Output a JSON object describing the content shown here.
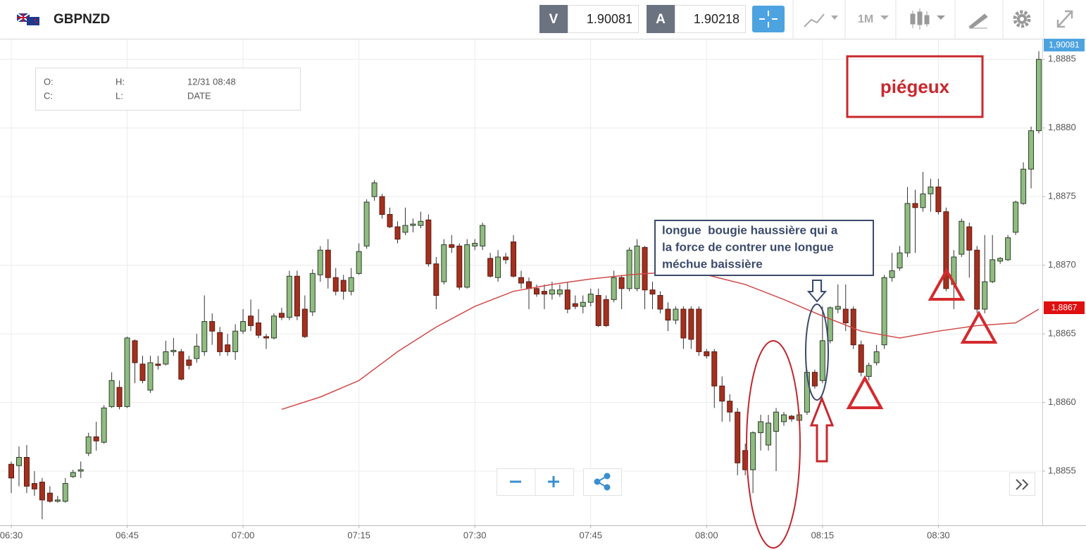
{
  "header": {
    "symbol": "GBPNZD",
    "sell_label": "V",
    "sell_price": "1.90081",
    "buy_label": "A",
    "buy_price": "1.90218",
    "timeframe": "1M"
  },
  "info_box": {
    "open_label": "O:",
    "high_label": "H:",
    "date_value": "12/31 08:48",
    "close_label": "C:",
    "low_label": "L:",
    "date_label": "DATE"
  },
  "chart_data": {
    "type": "candlestick",
    "x": [
      "06:30",
      "06:31",
      "06:32",
      "06:33",
      "06:34",
      "06:35",
      "06:36",
      "06:37",
      "06:38",
      "06:39",
      "06:40",
      "06:41",
      "06:42",
      "06:43",
      "06:44",
      "06:45",
      "06:46",
      "06:47",
      "06:48",
      "06:49",
      "06:50",
      "06:51",
      "06:52",
      "06:53",
      "06:54",
      "06:55",
      "06:56",
      "06:57",
      "06:58",
      "06:59",
      "07:00",
      "07:01",
      "07:02",
      "07:03",
      "07:04",
      "07:05",
      "07:06",
      "07:07",
      "07:08",
      "07:09",
      "07:10",
      "07:11",
      "07:12",
      "07:13",
      "07:14",
      "07:15",
      "07:16",
      "07:17",
      "07:18",
      "07:19",
      "07:20",
      "07:21",
      "07:22",
      "07:23",
      "07:24",
      "07:25",
      "07:26",
      "07:27",
      "07:28",
      "07:29",
      "07:30",
      "07:31",
      "07:32",
      "07:33",
      "07:34",
      "07:35",
      "07:36",
      "07:37",
      "07:38",
      "07:39",
      "07:40",
      "07:41",
      "07:42",
      "07:43",
      "07:44",
      "07:45",
      "07:46",
      "07:47",
      "07:48",
      "07:49",
      "07:50",
      "07:51",
      "07:52",
      "07:53",
      "07:54",
      "07:55",
      "07:56",
      "07:57",
      "07:58",
      "07:59",
      "08:00",
      "08:01",
      "08:02",
      "08:03",
      "08:04",
      "08:05",
      "08:06",
      "08:07",
      "08:08",
      "08:09",
      "08:10",
      "08:11",
      "08:12",
      "08:13",
      "08:14",
      "08:15",
      "08:16",
      "08:17",
      "08:18",
      "08:19",
      "08:20",
      "08:21",
      "08:22",
      "08:23",
      "08:24",
      "08:25",
      "08:26",
      "08:27",
      "08:28",
      "08:29",
      "08:30",
      "08:31",
      "08:32",
      "08:33",
      "08:34",
      "08:35",
      "08:36",
      "08:37",
      "08:38",
      "08:39",
      "08:40",
      "08:41",
      "08:42",
      "08:43"
    ],
    "open": [
      1.88555,
      1.88554,
      1.8856,
      1.88541,
      1.88542,
      1.88534,
      1.88528,
      1.88528,
      1.88546,
      1.8855,
      1.88563,
      1.88575,
      1.88571,
      1.88597,
      1.88611,
      1.88597,
      1.88645,
      1.88628,
      1.88609,
      1.88628,
      1.88628,
      1.88637,
      1.88637,
      1.88631,
      1.88632,
      1.88637,
      1.88659,
      1.88651,
      1.88642,
      1.88637,
      1.88652,
      1.88663,
      1.88658,
      1.88648,
      1.88647,
      1.88665,
      1.88662,
      1.88692,
      1.88668,
      1.88666,
      1.88693,
      1.88711,
      1.88691,
      1.88689,
      1.88681,
      1.88694,
      1.88714,
      1.8875,
      1.8875,
      1.88737,
      1.88728,
      1.88724,
      1.88729,
      1.88729,
      1.88733,
      1.88701,
      1.88688,
      1.88715,
      1.88714,
      1.88684,
      1.88714,
      1.88714,
      1.88705,
      1.88691,
      1.88706,
      1.88717,
      1.88691,
      1.88688,
      1.88683,
      1.88681,
      1.88679,
      1.88679,
      1.88682,
      1.88672,
      1.8867,
      1.88673,
      1.88678,
      1.88675,
      1.88675,
      1.88691,
      1.88683,
      1.88683,
      1.88713,
      1.88682,
      1.88678,
      1.88668,
      1.8866,
      1.88668,
      1.88668,
      1.88668,
      1.88637,
      1.88637,
      1.88612,
      1.88601,
      1.88593,
      1.88565,
      1.88551,
      1.88578,
      1.88569,
      1.88579,
      1.88586,
      1.8859,
      1.88587,
      1.88593,
      1.88622,
      1.88616,
      1.88645,
      1.88668,
      1.88668,
      1.88668,
      1.88642,
      1.88619,
      1.88629,
      1.88642,
      1.88691,
      1.88698,
      1.88709,
      1.88745,
      1.88742,
      1.88752,
      1.88757,
      1.88739,
      1.88686,
      1.88708,
      1.88728,
      1.88711,
      1.88668,
      1.88688,
      1.88703,
      1.88704,
      1.88724,
      1.88745,
      1.8877,
      1.88798
    ],
    "high": [
      1.88557,
      1.88568,
      1.88569,
      1.8855,
      1.88545,
      1.88539,
      1.88532,
      1.88545,
      1.88551,
      1.88557,
      1.88578,
      1.88586,
      1.88598,
      1.88622,
      1.88616,
      1.88648,
      1.88646,
      1.88634,
      1.88634,
      1.88634,
      1.88645,
      1.88647,
      1.88639,
      1.88634,
      1.8865,
      1.88678,
      1.88665,
      1.88655,
      1.8865,
      1.88657,
      1.88668,
      1.88675,
      1.88668,
      1.8865,
      1.88665,
      1.88669,
      1.88696,
      1.88696,
      1.88678,
      1.88697,
      1.88714,
      1.88719,
      1.88698,
      1.88693,
      1.88698,
      1.88716,
      1.88748,
      1.88762,
      1.88752,
      1.88742,
      1.88732,
      1.88742,
      1.88734,
      1.88739,
      1.88737,
      1.88706,
      1.88719,
      1.88722,
      1.88716,
      1.88719,
      1.88719,
      1.88731,
      1.88709,
      1.88711,
      1.88709,
      1.88722,
      1.88696,
      1.88691,
      1.88686,
      1.88686,
      1.88688,
      1.88686,
      1.88688,
      1.88678,
      1.88678,
      1.88683,
      1.88683,
      1.88678,
      1.88696,
      1.88693,
      1.88713,
      1.88719,
      1.88714,
      1.88688,
      1.88681,
      1.88673,
      1.8867,
      1.8867,
      1.8867,
      1.8867,
      1.88639,
      1.88639,
      1.88619,
      1.88606,
      1.88596,
      1.8857,
      1.88579,
      1.88591,
      1.88591,
      1.88596,
      1.88593,
      1.88591,
      1.88593,
      1.88624,
      1.88624,
      1.8867,
      1.8867,
      1.88686,
      1.88686,
      1.8867,
      1.88645,
      1.88629,
      1.88642,
      1.88693,
      1.88709,
      1.88714,
      1.88757,
      1.88755,
      1.88768,
      1.88763,
      1.88763,
      1.88742,
      1.88711,
      1.88734,
      1.88731,
      1.88714,
      1.88722,
      1.88722,
      1.88706,
      1.88722,
      1.88747,
      1.88775,
      1.88801,
      1.88856
    ],
    "low": [
      1.88534,
      1.88539,
      1.88534,
      1.88532,
      1.88515,
      1.88527,
      1.88527,
      1.88527,
      1.88545,
      1.88545,
      1.88561,
      1.88565,
      1.8857,
      1.88596,
      1.88595,
      1.88596,
      1.88614,
      1.88614,
      1.88607,
      1.88624,
      1.88627,
      1.88634,
      1.88616,
      1.88624,
      1.88629,
      1.88634,
      1.88642,
      1.88634,
      1.88634,
      1.88631,
      1.8865,
      1.88652,
      1.88647,
      1.88639,
      1.88646,
      1.8866,
      1.8866,
      1.8866,
      1.88647,
      1.88663,
      1.88688,
      1.88683,
      1.88678,
      1.88675,
      1.88678,
      1.88693,
      1.88712,
      1.88747,
      1.88734,
      1.88727,
      1.88716,
      1.88722,
      1.88724,
      1.88727,
      1.88699,
      1.88668,
      1.88686,
      1.88709,
      1.88682,
      1.88683,
      1.88711,
      1.88711,
      1.88691,
      1.88688,
      1.88701,
      1.88691,
      1.88683,
      1.88668,
      1.88677,
      1.88668,
      1.88675,
      1.88677,
      1.88665,
      1.88668,
      1.88665,
      1.8867,
      1.88655,
      1.88655,
      1.88673,
      1.88668,
      1.88681,
      1.88681,
      1.88668,
      1.88668,
      1.88665,
      1.88652,
      1.88657,
      1.88639,
      1.88639,
      1.88634,
      1.88632,
      1.88596,
      1.88586,
      1.88586,
      1.88547,
      1.88547,
      1.88534,
      1.88565,
      1.88565,
      1.8855,
      1.88583,
      1.88586,
      1.88583,
      1.88591,
      1.8861,
      1.88614,
      1.88643,
      1.88665,
      1.88652,
      1.88639,
      1.88619,
      1.88616,
      1.88627,
      1.88639,
      1.88688,
      1.88696,
      1.88706,
      1.88709,
      1.88739,
      1.88739,
      1.88737,
      1.88681,
      1.88668,
      1.88706,
      1.88691,
      1.88665,
      1.88665,
      1.88687,
      1.88701,
      1.88703,
      1.88722,
      1.88744,
      1.88756,
      1.88796
    ],
    "close": [
      1.88545,
      1.8856,
      1.88539,
      1.88537,
      1.88529,
      1.88528,
      1.88529,
      1.88541,
      1.88549,
      1.88551,
      1.88575,
      1.88572,
      1.88596,
      1.88616,
      1.88597,
      1.88647,
      1.88629,
      1.88616,
      1.88629,
      1.88627,
      1.88637,
      1.88638,
      1.88617,
      1.88627,
      1.88641,
      1.88659,
      1.88652,
      1.88637,
      1.88637,
      1.88652,
      1.88659,
      1.88656,
      1.88649,
      1.88647,
      1.88663,
      1.88662,
      1.88692,
      1.88663,
      1.88648,
      1.88694,
      1.88711,
      1.88691,
      1.88681,
      1.88681,
      1.88691,
      1.8871,
      1.88746,
      1.8876,
      1.88737,
      1.88728,
      1.88719,
      1.88729,
      1.8873,
      1.88732,
      1.88701,
      1.88678,
      1.88715,
      1.88713,
      1.88684,
      1.88715,
      1.88716,
      1.88729,
      1.88692,
      1.88706,
      1.88704,
      1.88692,
      1.88687,
      1.88683,
      1.88679,
      1.88679,
      1.88682,
      1.88682,
      1.88668,
      1.8867,
      1.88673,
      1.88679,
      1.88656,
      1.88656,
      1.88691,
      1.88683,
      1.88711,
      1.88714,
      1.88682,
      1.88679,
      1.88668,
      1.8866,
      1.88668,
      1.88647,
      1.88646,
      1.88637,
      1.88634,
      1.88612,
      1.88601,
      1.88593,
      1.88556,
      1.88551,
      1.88578,
      1.88586,
      1.88585,
      1.88593,
      1.88591,
      1.88588,
      1.88591,
      1.88622,
      1.88612,
      1.88645,
      1.88669,
      1.8867,
      1.88658,
      1.88642,
      1.88622,
      1.88627,
      1.88637,
      1.88691,
      1.88696,
      1.88709,
      1.88745,
      1.88742,
      1.88752,
      1.88757,
      1.88739,
      1.88683,
      1.88706,
      1.88732,
      1.88711,
      1.88668,
      1.88688,
      1.88704,
      1.88705,
      1.8872,
      1.88746,
      1.8877,
      1.88798,
      1.8885
    ],
    "up_color": "#8fbc80",
    "down_color": "#a3301f",
    "moving_average": {
      "color": "#d24a4a",
      "x": [
        "07:05",
        "07:10",
        "07:15",
        "07:20",
        "07:25",
        "07:30",
        "07:35",
        "07:40",
        "07:45",
        "07:50",
        "07:55",
        "08:00",
        "08:05",
        "08:10",
        "08:15",
        "08:20",
        "08:25",
        "08:30",
        "08:35",
        "08:40",
        "08:43"
      ],
      "values": [
        1.88595,
        1.88604,
        1.88616,
        1.88637,
        1.88655,
        1.8867,
        1.88681,
        1.88686,
        1.8869,
        1.88693,
        1.88695,
        1.88693,
        1.88686,
        1.88675,
        1.88663,
        1.88652,
        1.88647,
        1.88652,
        1.88656,
        1.88658,
        1.88668
      ]
    },
    "ylim": [
      1.88511,
      1.88864
    ],
    "yticks": [
      {
        "value": 1.8855,
        "label": "1,8855"
      },
      {
        "value": 1.886,
        "label": "1,8860"
      },
      {
        "value": 1.8865,
        "label": "1,8865"
      },
      {
        "value": 1.887,
        "label": "1,8870"
      },
      {
        "value": 1.8875,
        "label": "1,8875"
      },
      {
        "value": 1.888,
        "label": "1,8880"
      },
      {
        "value": 1.8885,
        "label": "1,8885"
      }
    ],
    "xticks": [
      "06:30",
      "06:45",
      "07:00",
      "07:15",
      "07:30",
      "07:45",
      "08:00",
      "08:15",
      "08:30"
    ],
    "grid": true,
    "price_tags": {
      "current": "1,90081",
      "moving_average": "1,8867"
    },
    "annotations": {
      "trap": "piégeux",
      "note": [
        "longue  bougie haussière qui a",
        "la force de contrer une longue",
        "méchue baissière"
      ]
    }
  }
}
